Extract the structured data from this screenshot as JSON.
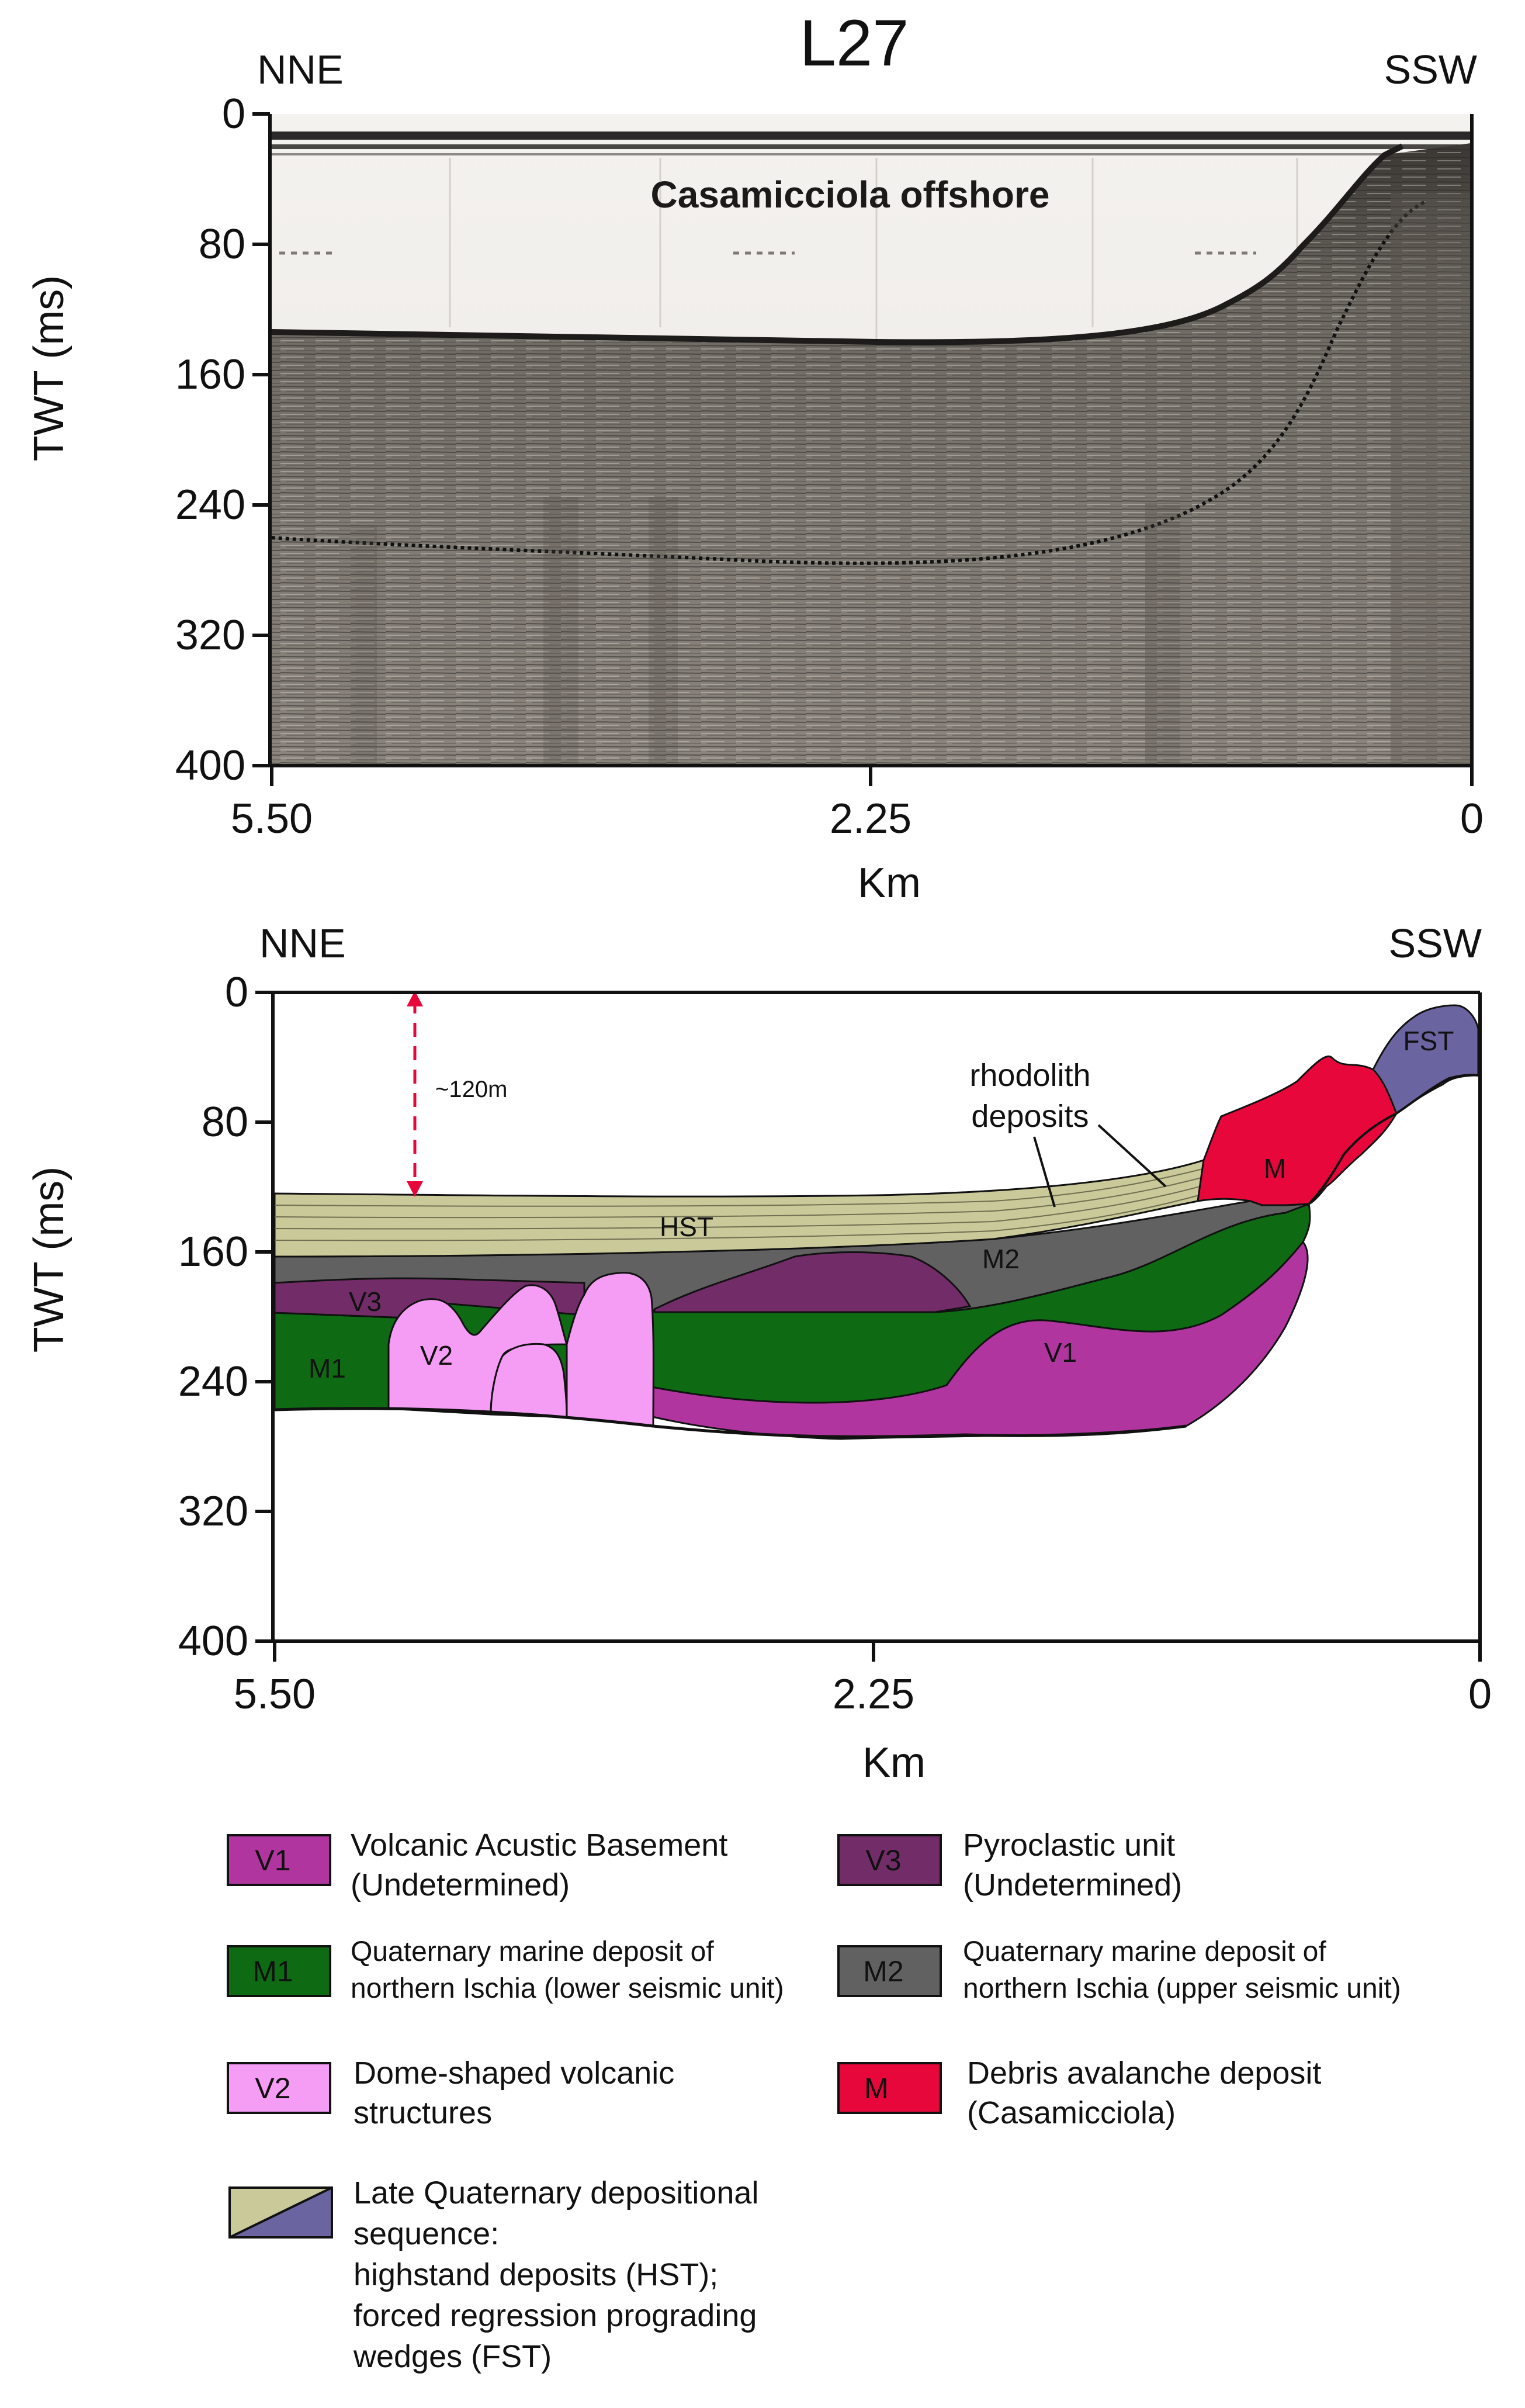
{
  "title": "L27",
  "top_panel": {
    "dir_left": "NNE",
    "dir_right": "SSW",
    "ylabel": "TWT (ms)",
    "yticks": [
      "0",
      "80",
      "160",
      "240",
      "320",
      "400"
    ],
    "xticks": [
      "5.50",
      "2.25",
      "0"
    ],
    "xlabel": "Km",
    "profile_label": "Casamicciola offshore"
  },
  "bottom_panel": {
    "dir_left": "NNE",
    "dir_right": "SSW",
    "ylabel": "TWT (ms)",
    "yticks": [
      "0",
      "80",
      "160",
      "240",
      "320",
      "400"
    ],
    "xticks": [
      "5.50",
      "2.25",
      "0"
    ],
    "xlabel": "Km",
    "depth_annotation": "~120m",
    "rhodolith_line1": "rhodolith",
    "rhodolith_line2": "deposits",
    "unit_labels": {
      "fst": "FST",
      "m": "M",
      "hst": "HST",
      "m2": "M2",
      "v3": "V3",
      "v2": "V2",
      "m1": "M1",
      "v1": "V1"
    }
  },
  "legend": {
    "v1": {
      "code": "V1",
      "line1": "Volcanic Acustic Basement",
      "line2": "(Undetermined)",
      "color": "#b0359f"
    },
    "v3": {
      "code": "V3",
      "line1": "Pyroclastic unit",
      "line2": "(Undetermined)",
      "color": "#722d68"
    },
    "m1": {
      "code": "M1",
      "line1": "Quaternary marine deposit of",
      "line2": "northern Ischia (lower seismic unit)",
      "color": "#0e6b14"
    },
    "m2": {
      "code": "M2",
      "line1": "Quaternary marine deposit of",
      "line2": "northern Ischia (upper seismic unit)",
      "color": "#616161"
    },
    "v2": {
      "code": "V2",
      "line1": "Dome-shaped volcanic",
      "line2": "structures",
      "color": "#f59cf5"
    },
    "m": {
      "code": "M",
      "line1": "Debris avalanche deposit",
      "line2": "(Casamicciola)",
      "color": "#e8073b"
    },
    "lq": {
      "line1": "Late Quaternary depositional",
      "line2": "sequence:",
      "line3": "highstand deposits (HST);",
      "line4": "forced regression prograding",
      "line5": "wedges (FST)",
      "color_hst": "#c9c99a",
      "color_fst": "#6a65a1"
    }
  }
}
